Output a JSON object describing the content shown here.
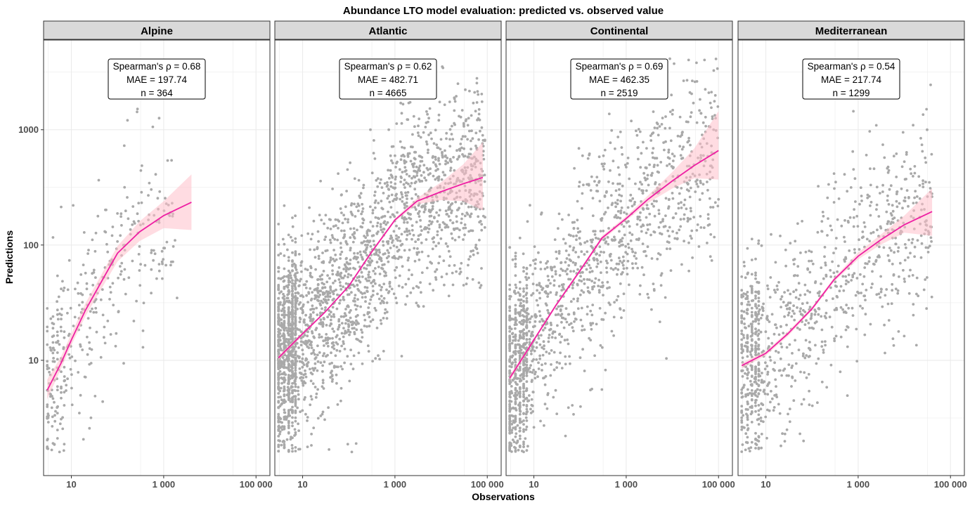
{
  "chart_data": {
    "type": "scatter",
    "title": "Abundance LTO model evaluation: predicted vs. observed value",
    "xlabel": "Observations",
    "ylabel": "Predictions",
    "x_scale": "log10",
    "y_scale": "log10",
    "xlim": [
      2.5,
      200000
    ],
    "ylim": [
      1.0,
      6000
    ],
    "x_ticks": [
      {
        "value": 10,
        "label": "10"
      },
      {
        "value": 1000,
        "label": "1 000"
      },
      {
        "value": 100000,
        "label": "100 000"
      }
    ],
    "y_ticks": [
      {
        "value": 10,
        "label": "10"
      },
      {
        "value": 100,
        "label": "100"
      },
      {
        "value": 1000,
        "label": "1000"
      }
    ],
    "grid": true,
    "colors": {
      "points": "#a9a9a9",
      "fit_line": "#ee1fa3",
      "ribbon": "#ffc0cb",
      "strip_fill": "#d9d9d9",
      "grid": "#ebebeb"
    },
    "panels": [
      {
        "name": "Alpine",
        "stats": [
          "Spearman's ρ = 0.68",
          "MAE = 197.74",
          "n = 364"
        ],
        "point_count": 364,
        "fit": {
          "x": [
            3,
            6,
            10,
            20,
            50,
            100,
            300,
            1000,
            4000
          ],
          "y": [
            5.5,
            9.5,
            15,
            27,
            52,
            85,
            130,
            180,
            235
          ],
          "lo": [
            4.6,
            8.5,
            13.5,
            24,
            45,
            72,
            108,
            140,
            135
          ],
          "hi": [
            6.8,
            10.8,
            17,
            31,
            60,
            98,
            160,
            240,
            410
          ]
        }
      },
      {
        "name": "Atlantic",
        "stats": [
          "Spearman's ρ = 0.62",
          "MAE = 482.71",
          "n = 4665"
        ],
        "point_count": 4665,
        "fit": {
          "x": [
            3,
            10,
            30,
            100,
            300,
            1000,
            3000,
            10000,
            30000,
            80000
          ],
          "y": [
            10.5,
            17,
            26,
            44,
            85,
            165,
            240,
            290,
            340,
            385
          ],
          "lo": [
            10,
            16.5,
            25.5,
            43,
            82,
            160,
            225,
            245,
            240,
            200
          ],
          "hi": [
            11,
            17.5,
            26.5,
            45,
            88,
            170,
            255,
            350,
            500,
            780
          ]
        }
      },
      {
        "name": "Continental",
        "stats": [
          "Spearman's ρ = 0.69",
          "MAE = 462.35",
          "n = 2519"
        ],
        "point_count": 2519,
        "fit": {
          "x": [
            3,
            10,
            30,
            100,
            300,
            1000,
            3000,
            10000,
            30000,
            100000
          ],
          "y": [
            7,
            15,
            30,
            60,
            115,
            170,
            250,
            360,
            490,
            660
          ],
          "lo": [
            6.6,
            14.5,
            29,
            58,
            110,
            163,
            232,
            310,
            380,
            370
          ],
          "hi": [
            7.4,
            15.5,
            31,
            62,
            120,
            178,
            270,
            430,
            690,
            1450
          ]
        }
      },
      {
        "name": "Mediterranean",
        "stats": [
          "Spearman's ρ = 0.54",
          "MAE = 217.74",
          "n = 1299"
        ],
        "point_count": 1299,
        "fit": {
          "x": [
            3,
            10,
            30,
            100,
            300,
            1000,
            3000,
            10000,
            40000
          ],
          "y": [
            9,
            11.5,
            17,
            28,
            50,
            80,
            110,
            150,
            195
          ],
          "lo": [
            8.5,
            11,
            16.2,
            27,
            48,
            75,
            100,
            128,
            120
          ],
          "hi": [
            9.5,
            12,
            17.8,
            29,
            52,
            86,
            122,
            180,
            310
          ]
        }
      }
    ]
  }
}
